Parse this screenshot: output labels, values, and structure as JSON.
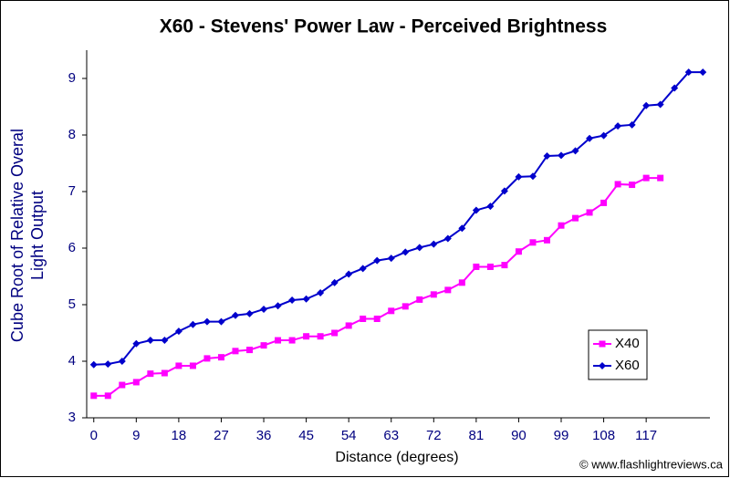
{
  "chart_data": {
    "type": "line",
    "title": "X60 - Stevens' Power Law - Perceived Brightness",
    "x_label": "Distance (degrees)",
    "y_label": [
      "Cube Root of Relative Overal",
      "Light Output"
    ],
    "credit": "© www.flashlightreviews.ca",
    "categories": [
      0,
      null,
      null,
      9,
      null,
      null,
      18,
      null,
      null,
      27,
      null,
      null,
      36,
      null,
      null,
      45,
      null,
      null,
      54,
      null,
      null,
      63,
      null,
      null,
      72,
      null,
      null,
      81,
      null,
      null,
      90,
      null,
      null,
      99,
      null,
      null,
      108,
      null,
      null,
      117,
      null,
      null,
      null,
      null
    ],
    "series": [
      {
        "name": "X40",
        "color": "#ff00ff",
        "marker": "square",
        "values": [
          3.39,
          3.39,
          3.58,
          3.63,
          3.78,
          3.79,
          3.92,
          3.92,
          4.05,
          4.07,
          4.18,
          4.2,
          4.28,
          4.37,
          4.37,
          4.44,
          4.44,
          4.5,
          4.63,
          4.75,
          4.75,
          4.89,
          4.97,
          5.09,
          5.18,
          5.26,
          5.39,
          5.67,
          5.67,
          5.7,
          5.94,
          6.1,
          6.14,
          6.4,
          6.53,
          6.63,
          6.8,
          7.13,
          7.12,
          7.24,
          7.24,
          null,
          null,
          null
        ]
      },
      {
        "name": "X60",
        "color": "#0000cc",
        "marker": "diamond",
        "values": [
          3.94,
          3.95,
          4.0,
          4.31,
          4.37,
          4.37,
          4.53,
          4.65,
          4.7,
          4.7,
          4.81,
          4.84,
          4.92,
          4.98,
          5.08,
          5.1,
          5.21,
          5.39,
          5.54,
          5.64,
          5.78,
          5.82,
          5.93,
          6.01,
          6.07,
          6.17,
          6.35,
          6.67,
          6.74,
          7.01,
          7.26,
          7.27,
          7.63,
          7.64,
          7.72,
          7.94,
          7.99,
          8.16,
          8.18,
          8.52,
          8.54,
          8.83,
          9.11,
          9.11
        ]
      }
    ],
    "ylim": [
      3,
      9.5
    ],
    "yticks": [
      3,
      4,
      5,
      6,
      7,
      8,
      9
    ],
    "legend": "bottom-right"
  }
}
